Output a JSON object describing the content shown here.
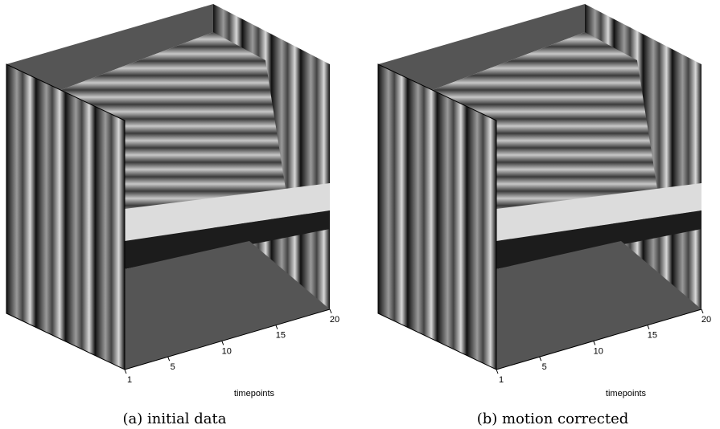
{
  "panels": [
    {
      "caption": "(a) initial data",
      "axis_label": "timepoints",
      "xlim": [
        1,
        20
      ],
      "xticks": [
        1,
        5,
        10,
        15,
        20
      ]
    },
    {
      "caption": "(b) motion corrected",
      "axis_label": "timepoints",
      "xlim": [
        1,
        20
      ],
      "xticks": [
        1,
        5,
        10,
        15,
        20
      ]
    }
  ]
}
